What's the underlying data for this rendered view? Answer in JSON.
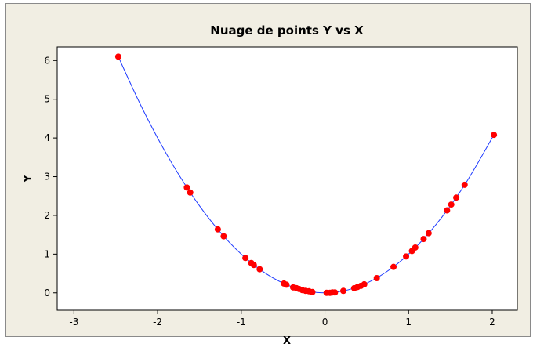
{
  "colors": {
    "background": "#f1eee3",
    "plot_background": "#ffffff",
    "curve": "#1f3bff",
    "points": "#ff0000"
  },
  "chart_data": {
    "type": "scatter",
    "title": "Nuage de points Y vs X",
    "xlabel": "X",
    "ylabel": "Y",
    "xlim": [
      -3.2,
      2.3
    ],
    "ylim": [
      -0.45,
      6.35
    ],
    "xticks": [
      -3,
      -2,
      -1,
      0,
      1,
      2
    ],
    "yticks": [
      0,
      1,
      2,
      3,
      4,
      5,
      6
    ],
    "grid": false,
    "legend": "none",
    "series": [
      {
        "type": "scatter",
        "x": [
          -2.47,
          -1.65,
          -1.61,
          -1.28,
          -1.21,
          -0.95,
          -0.88,
          -0.85,
          -0.78,
          -0.49,
          -0.46,
          -0.38,
          -0.34,
          -0.31,
          -0.27,
          -0.23,
          -0.19,
          -0.15,
          0.02,
          0.06,
          0.09,
          0.12,
          0.22,
          0.35,
          0.39,
          0.43,
          0.47,
          0.62,
          0.82,
          0.97,
          1.04,
          1.08,
          1.18,
          1.24,
          1.46,
          1.51,
          1.57,
          1.67,
          2.02
        ],
        "y": [
          6.1,
          2.72,
          2.59,
          1.64,
          1.46,
          0.9,
          0.77,
          0.72,
          0.61,
          0.24,
          0.21,
          0.14,
          0.12,
          0.1,
          0.07,
          0.05,
          0.04,
          0.02,
          0.0,
          0.0,
          0.01,
          0.01,
          0.05,
          0.12,
          0.15,
          0.18,
          0.22,
          0.38,
          0.67,
          0.94,
          1.08,
          1.17,
          1.39,
          1.54,
          2.13,
          2.28,
          2.46,
          2.79,
          4.08
        ]
      },
      {
        "type": "line",
        "x": [
          -2.47,
          -2.2,
          -1.9,
          -1.6,
          -1.3,
          -1.0,
          -0.7,
          -0.4,
          -0.1,
          0.2,
          0.5,
          0.8,
          1.1,
          1.4,
          1.7,
          2.02
        ],
        "y": [
          6.1,
          4.84,
          3.61,
          2.56,
          1.69,
          1.0,
          0.49,
          0.16,
          0.01,
          0.04,
          0.25,
          0.64,
          1.21,
          1.96,
          2.89,
          4.08
        ]
      }
    ]
  }
}
